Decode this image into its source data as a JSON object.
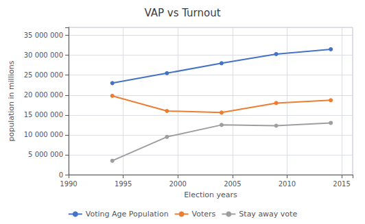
{
  "chart_data": {
    "type": "line",
    "title": "VAP vs Turnout",
    "xlabel": "Election years",
    "ylabel": "population in millions",
    "x": [
      1994,
      1999,
      2004,
      2009,
      2014
    ],
    "series": [
      {
        "name": "Voting Age Population",
        "color": "#4472C4",
        "values": [
          23000000,
          25500000,
          28000000,
          30300000,
          31500000
        ]
      },
      {
        "name": "Voters",
        "color": "#ED7D31",
        "values": [
          19800000,
          16000000,
          15600000,
          18000000,
          18700000
        ]
      },
      {
        "name": "Stay away vote",
        "color": "#9E9E9E",
        "values": [
          3500000,
          9500000,
          12500000,
          12300000,
          13000000
        ]
      }
    ],
    "xlim": [
      1990,
      2016
    ],
    "xticks": [
      1990,
      1995,
      2000,
      2005,
      2010,
      2015
    ],
    "ylim": [
      0,
      37000000
    ],
    "yticks": [
      0,
      {
        "value": 5000000,
        "label": "5 000 000"
      },
      {
        "value": 10000000,
        "label": "10 000 000"
      },
      {
        "value": 15000000,
        "label": "15 000 000"
      },
      {
        "value": 20000000,
        "label": "20 000 000"
      },
      {
        "value": 25000000,
        "label": "25 000 000"
      },
      {
        "value": 30000000,
        "label": "30 000 000"
      },
      {
        "value": 35000000,
        "label": "35 000 000"
      }
    ],
    "grid": true,
    "legend": "bottom",
    "marker": "circle"
  }
}
